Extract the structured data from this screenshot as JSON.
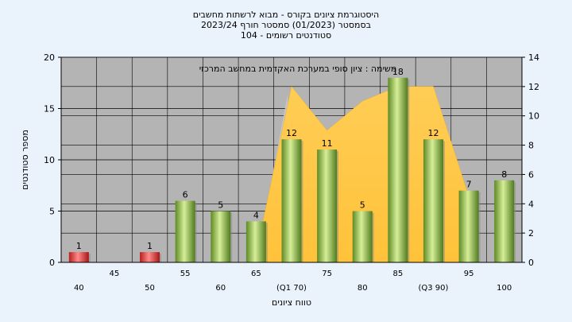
{
  "title_lines": [
    "היסטוגרמת ציונים בקורס - מבוא לרשתות מחשבים",
    "בסמסטר  (01/2023)  סמסטר חורף  2023/24",
    "סטודנטים רשומים - 104"
  ],
  "annotation": "משימה : ציון סופי במערכת האקדמית במחשב המרכזי",
  "chart_data": {
    "type": "bar",
    "title": "היסטוגרמת ציונים בקורס - מבוא לרשתות מחשבים",
    "xlabel": "טווח ציונים",
    "ylabel": "מספר סטודנטים",
    "categories": [
      "40",
      "45",
      "50",
      "55",
      "60",
      "65",
      "70",
      "75",
      "80",
      "85",
      "90",
      "95",
      "100"
    ],
    "x_tick_labels": [
      "40",
      "45",
      "50",
      "55",
      "60",
      "65",
      "(Q1 70)",
      "75",
      "80",
      "85",
      "(Q3 90)",
      "95",
      "100"
    ],
    "values": [
      1,
      0,
      1,
      6,
      5,
      4,
      12,
      11,
      5,
      18,
      12,
      7,
      8
    ],
    "bar_colors": [
      "#e23b3b",
      "#e23b3b",
      "#e23b3b",
      "#8ab84a",
      "#8ab84a",
      "#8ab84a",
      "#8ab84a",
      "#8ab84a",
      "#8ab84a",
      "#8ab84a",
      "#8ab84a",
      "#8ab84a",
      "#8ab84a"
    ],
    "ylim_left": [
      0,
      20
    ],
    "yticks_left": [
      0,
      5,
      10,
      15,
      20
    ],
    "ylim_right": [
      0,
      14
    ],
    "yticks_right": [
      0,
      2,
      4,
      6,
      8,
      10,
      12,
      14
    ],
    "background_area": {
      "categories": [
        "65",
        "70",
        "75",
        "80",
        "85",
        "90",
        "95"
      ],
      "values": [
        0.6,
        12.0,
        9.0,
        11.0,
        12.0,
        12.0,
        4.5
      ]
    },
    "grid": true,
    "colors": {
      "plot_bg": "#b4b4b4",
      "page_bg": "#eaf2fb",
      "area": "#ffc94a",
      "bar_green": "#8ab84a",
      "bar_red": "#e23b3b"
    }
  }
}
